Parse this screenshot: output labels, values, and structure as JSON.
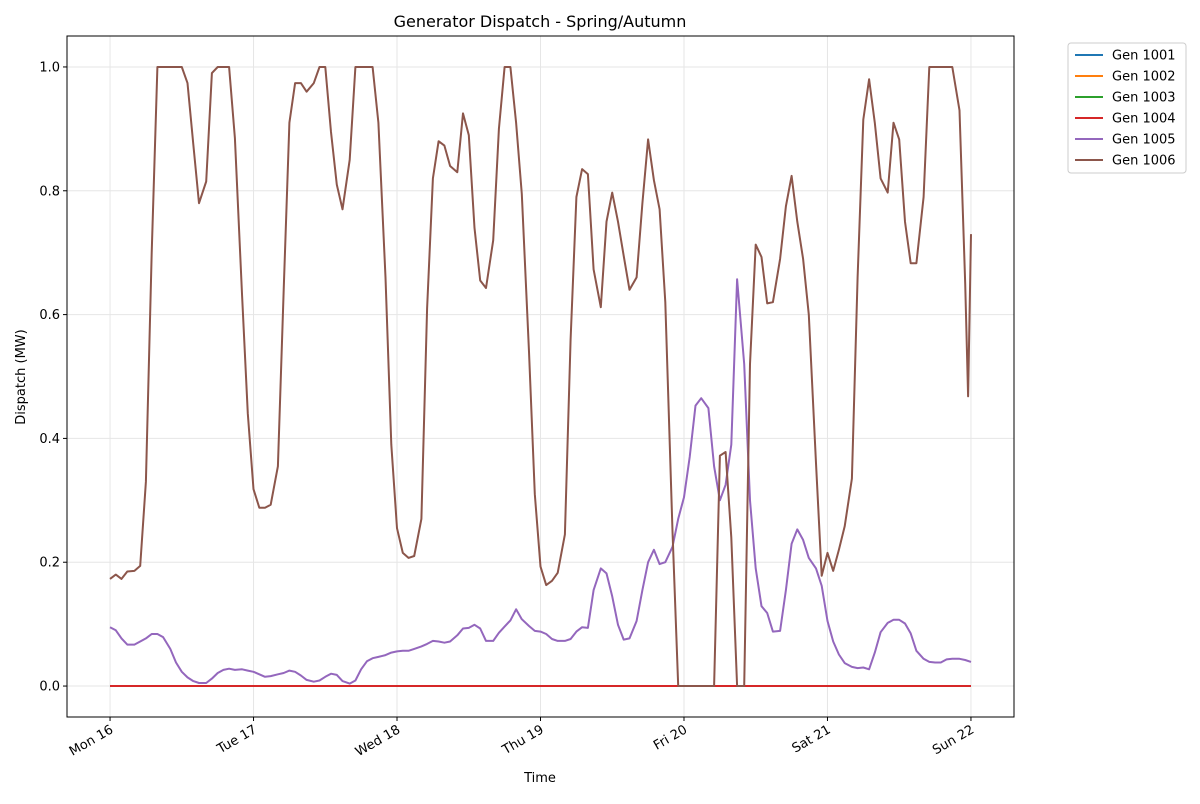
{
  "chart_data": {
    "type": "line",
    "title": "Generator Dispatch - Spring/Autumn",
    "xlabel": "Time",
    "ylabel": "Dispatch (MW)",
    "x_tick_labels": [
      "Mon 16",
      "Tue 17",
      "Wed 18",
      "Thu 19",
      "Fri 20",
      "Sat 21",
      "Sun 22"
    ],
    "y_tick_labels": [
      "0.0",
      "0.2",
      "0.4",
      "0.6",
      "0.8",
      "1.0"
    ],
    "y_ticks": [
      0.0,
      0.2,
      0.4,
      0.6,
      0.8,
      1.0
    ],
    "xlim_days": [
      -0.3,
      6.3
    ],
    "ylim": [
      -0.05,
      1.05
    ],
    "grid": true,
    "legend_position": "outside-right-top",
    "series": [
      {
        "name": "Gen 1001",
        "color": "#1f77b4",
        "points": [
          [
            0,
            0.0
          ],
          [
            6,
            0.0
          ]
        ]
      },
      {
        "name": "Gen 1002",
        "color": "#ff7f0e",
        "points": [
          [
            0,
            0.0
          ],
          [
            6,
            0.0
          ]
        ]
      },
      {
        "name": "Gen 1003",
        "color": "#2ca02c",
        "points": [
          [
            0,
            0.0
          ],
          [
            6,
            0.0
          ]
        ]
      },
      {
        "name": "Gen 1004",
        "color": "#d62728",
        "points": [
          [
            0,
            0.0
          ],
          [
            6,
            0.0
          ]
        ]
      },
      {
        "name": "Gen 1005",
        "color": "#9467bd",
        "points": [
          [
            0.0,
            0.095
          ],
          [
            0.04,
            0.09
          ],
          [
            0.08,
            0.077
          ],
          [
            0.12,
            0.067
          ],
          [
            0.17,
            0.067
          ],
          [
            0.21,
            0.072
          ],
          [
            0.25,
            0.077
          ],
          [
            0.29,
            0.084
          ],
          [
            0.33,
            0.084
          ],
          [
            0.37,
            0.079
          ],
          [
            0.42,
            0.06
          ],
          [
            0.46,
            0.038
          ],
          [
            0.5,
            0.023
          ],
          [
            0.54,
            0.014
          ],
          [
            0.58,
            0.008
          ],
          [
            0.62,
            0.005
          ],
          [
            0.67,
            0.005
          ],
          [
            0.71,
            0.012
          ],
          [
            0.75,
            0.021
          ],
          [
            0.79,
            0.026
          ],
          [
            0.83,
            0.028
          ],
          [
            0.87,
            0.026
          ],
          [
            0.92,
            0.027
          ],
          [
            0.96,
            0.025
          ],
          [
            1.0,
            0.023
          ],
          [
            1.04,
            0.019
          ],
          [
            1.08,
            0.015
          ],
          [
            1.12,
            0.016
          ],
          [
            1.17,
            0.019
          ],
          [
            1.21,
            0.021
          ],
          [
            1.25,
            0.025
          ],
          [
            1.29,
            0.023
          ],
          [
            1.33,
            0.017
          ],
          [
            1.37,
            0.01
          ],
          [
            1.42,
            0.007
          ],
          [
            1.46,
            0.009
          ],
          [
            1.5,
            0.015
          ],
          [
            1.54,
            0.02
          ],
          [
            1.58,
            0.018
          ],
          [
            1.62,
            0.008
          ],
          [
            1.67,
            0.004
          ],
          [
            1.71,
            0.009
          ],
          [
            1.75,
            0.027
          ],
          [
            1.79,
            0.04
          ],
          [
            1.83,
            0.045
          ],
          [
            1.87,
            0.047
          ],
          [
            1.92,
            0.05
          ],
          [
            1.96,
            0.054
          ],
          [
            2.0,
            0.056
          ],
          [
            2.04,
            0.057
          ],
          [
            2.08,
            0.057
          ],
          [
            2.12,
            0.06
          ],
          [
            2.17,
            0.064
          ],
          [
            2.21,
            0.068
          ],
          [
            2.25,
            0.073
          ],
          [
            2.29,
            0.072
          ],
          [
            2.33,
            0.07
          ],
          [
            2.37,
            0.072
          ],
          [
            2.42,
            0.082
          ],
          [
            2.46,
            0.093
          ],
          [
            2.5,
            0.094
          ],
          [
            2.54,
            0.099
          ],
          [
            2.58,
            0.093
          ],
          [
            2.62,
            0.073
          ],
          [
            2.67,
            0.073
          ],
          [
            2.71,
            0.086
          ],
          [
            2.75,
            0.096
          ],
          [
            2.79,
            0.106
          ],
          [
            2.83,
            0.124
          ],
          [
            2.87,
            0.108
          ],
          [
            2.92,
            0.097
          ],
          [
            2.96,
            0.089
          ],
          [
            3.0,
            0.088
          ],
          [
            3.04,
            0.084
          ],
          [
            3.08,
            0.076
          ],
          [
            3.12,
            0.073
          ],
          [
            3.17,
            0.073
          ],
          [
            3.21,
            0.076
          ],
          [
            3.25,
            0.088
          ],
          [
            3.29,
            0.095
          ],
          [
            3.33,
            0.094
          ],
          [
            3.37,
            0.155
          ],
          [
            3.42,
            0.19
          ],
          [
            3.46,
            0.182
          ],
          [
            3.5,
            0.145
          ],
          [
            3.54,
            0.099
          ],
          [
            3.58,
            0.075
          ],
          [
            3.62,
            0.077
          ],
          [
            3.67,
            0.105
          ],
          [
            3.71,
            0.155
          ],
          [
            3.75,
            0.2
          ],
          [
            3.79,
            0.22
          ],
          [
            3.83,
            0.197
          ],
          [
            3.87,
            0.2
          ],
          [
            3.92,
            0.225
          ],
          [
            3.96,
            0.27
          ],
          [
            4.0,
            0.305
          ],
          [
            4.04,
            0.37
          ],
          [
            4.08,
            0.453
          ],
          [
            4.12,
            0.465
          ],
          [
            4.17,
            0.449
          ],
          [
            4.21,
            0.355
          ],
          [
            4.25,
            0.3
          ],
          [
            4.29,
            0.325
          ],
          [
            4.33,
            0.39
          ],
          [
            4.37,
            0.657
          ],
          [
            4.42,
            0.52
          ],
          [
            4.46,
            0.3
          ],
          [
            4.5,
            0.19
          ],
          [
            4.54,
            0.129
          ],
          [
            4.58,
            0.118
          ],
          [
            4.62,
            0.088
          ],
          [
            4.67,
            0.089
          ],
          [
            4.71,
            0.155
          ],
          [
            4.75,
            0.23
          ],
          [
            4.79,
            0.253
          ],
          [
            4.83,
            0.236
          ],
          [
            4.87,
            0.207
          ],
          [
            4.92,
            0.19
          ],
          [
            4.96,
            0.162
          ],
          [
            5.0,
            0.105
          ],
          [
            5.04,
            0.072
          ],
          [
            5.08,
            0.051
          ],
          [
            5.12,
            0.037
          ],
          [
            5.17,
            0.031
          ],
          [
            5.21,
            0.029
          ],
          [
            5.25,
            0.03
          ],
          [
            5.29,
            0.027
          ],
          [
            5.33,
            0.054
          ],
          [
            5.37,
            0.087
          ],
          [
            5.42,
            0.102
          ],
          [
            5.46,
            0.107
          ],
          [
            5.5,
            0.107
          ],
          [
            5.54,
            0.101
          ],
          [
            5.58,
            0.085
          ],
          [
            5.62,
            0.057
          ],
          [
            5.67,
            0.044
          ],
          [
            5.71,
            0.039
          ],
          [
            5.75,
            0.038
          ],
          [
            5.79,
            0.038
          ],
          [
            5.83,
            0.043
          ],
          [
            5.87,
            0.044
          ],
          [
            5.92,
            0.044
          ],
          [
            5.96,
            0.042
          ],
          [
            6.0,
            0.039
          ]
        ]
      },
      {
        "name": "Gen 1006",
        "color": "#8c564b",
        "points": [
          [
            0.0,
            0.173
          ],
          [
            0.04,
            0.18
          ],
          [
            0.08,
            0.173
          ],
          [
            0.12,
            0.185
          ],
          [
            0.17,
            0.186
          ],
          [
            0.21,
            0.194
          ],
          [
            0.25,
            0.33
          ],
          [
            0.29,
            0.7
          ],
          [
            0.33,
            1.0
          ],
          [
            0.37,
            1.0
          ],
          [
            0.42,
            1.0
          ],
          [
            0.46,
            1.0
          ],
          [
            0.5,
            1.0
          ],
          [
            0.54,
            0.974
          ],
          [
            0.58,
            0.875
          ],
          [
            0.62,
            0.78
          ],
          [
            0.67,
            0.815
          ],
          [
            0.71,
            0.99
          ],
          [
            0.75,
            1.0
          ],
          [
            0.79,
            1.0
          ],
          [
            0.83,
            1.0
          ],
          [
            0.87,
            0.885
          ],
          [
            0.92,
            0.63
          ],
          [
            0.96,
            0.44
          ],
          [
            1.0,
            0.318
          ],
          [
            1.04,
            0.288
          ],
          [
            1.08,
            0.288
          ],
          [
            1.12,
            0.293
          ],
          [
            1.17,
            0.355
          ],
          [
            1.21,
            0.64
          ],
          [
            1.25,
            0.91
          ],
          [
            1.29,
            0.974
          ],
          [
            1.33,
            0.974
          ],
          [
            1.37,
            0.96
          ],
          [
            1.42,
            0.974
          ],
          [
            1.46,
            1.0
          ],
          [
            1.5,
            1.0
          ],
          [
            1.54,
            0.895
          ],
          [
            1.58,
            0.81
          ],
          [
            1.62,
            0.77
          ],
          [
            1.67,
            0.85
          ],
          [
            1.71,
            1.0
          ],
          [
            1.75,
            1.0
          ],
          [
            1.79,
            1.0
          ],
          [
            1.83,
            1.0
          ],
          [
            1.87,
            0.91
          ],
          [
            1.92,
            0.66
          ],
          [
            1.96,
            0.39
          ],
          [
            2.0,
            0.255
          ],
          [
            2.04,
            0.215
          ],
          [
            2.08,
            0.207
          ],
          [
            2.12,
            0.21
          ],
          [
            2.17,
            0.27
          ],
          [
            2.21,
            0.61
          ],
          [
            2.25,
            0.82
          ],
          [
            2.29,
            0.88
          ],
          [
            2.33,
            0.873
          ],
          [
            2.37,
            0.84
          ],
          [
            2.42,
            0.83
          ],
          [
            2.46,
            0.925
          ],
          [
            2.5,
            0.89
          ],
          [
            2.54,
            0.74
          ],
          [
            2.58,
            0.655
          ],
          [
            2.62,
            0.643
          ],
          [
            2.67,
            0.72
          ],
          [
            2.71,
            0.9
          ],
          [
            2.75,
            1.0
          ],
          [
            2.79,
            1.0
          ],
          [
            2.83,
            0.91
          ],
          [
            2.87,
            0.795
          ],
          [
            2.92,
            0.54
          ],
          [
            2.96,
            0.31
          ],
          [
            3.0,
            0.193
          ],
          [
            3.04,
            0.163
          ],
          [
            3.08,
            0.17
          ],
          [
            3.12,
            0.183
          ],
          [
            3.17,
            0.245
          ],
          [
            3.21,
            0.56
          ],
          [
            3.25,
            0.79
          ],
          [
            3.29,
            0.835
          ],
          [
            3.33,
            0.827
          ],
          [
            3.37,
            0.673
          ],
          [
            3.42,
            0.612
          ],
          [
            3.46,
            0.75
          ],
          [
            3.5,
            0.797
          ],
          [
            3.54,
            0.75
          ],
          [
            3.58,
            0.695
          ],
          [
            3.62,
            0.64
          ],
          [
            3.67,
            0.66
          ],
          [
            3.71,
            0.78
          ],
          [
            3.75,
            0.883
          ],
          [
            3.79,
            0.817
          ],
          [
            3.83,
            0.77
          ],
          [
            3.87,
            0.62
          ],
          [
            3.92,
            0.25
          ],
          [
            3.96,
            0.0
          ],
          [
            4.0,
            0.0
          ],
          [
            4.04,
            0.0
          ],
          [
            4.08,
            0.0
          ],
          [
            4.12,
            0.0
          ],
          [
            4.17,
            0.0
          ],
          [
            4.21,
            0.0
          ],
          [
            4.25,
            0.372
          ],
          [
            4.29,
            0.378
          ],
          [
            4.33,
            0.24
          ],
          [
            4.37,
            0.0
          ],
          [
            4.42,
            0.0
          ],
          [
            4.46,
            0.52
          ],
          [
            4.5,
            0.713
          ],
          [
            4.54,
            0.693
          ],
          [
            4.58,
            0.618
          ],
          [
            4.62,
            0.62
          ],
          [
            4.67,
            0.69
          ],
          [
            4.71,
            0.775
          ],
          [
            4.75,
            0.824
          ],
          [
            4.79,
            0.75
          ],
          [
            4.83,
            0.69
          ],
          [
            4.87,
            0.6
          ],
          [
            4.92,
            0.36
          ],
          [
            4.96,
            0.178
          ],
          [
            5.0,
            0.215
          ],
          [
            5.04,
            0.186
          ],
          [
            5.08,
            0.22
          ],
          [
            5.12,
            0.258
          ],
          [
            5.17,
            0.335
          ],
          [
            5.21,
            0.66
          ],
          [
            5.25,
            0.915
          ],
          [
            5.29,
            0.98
          ],
          [
            5.33,
            0.91
          ],
          [
            5.37,
            0.82
          ],
          [
            5.42,
            0.797
          ],
          [
            5.46,
            0.91
          ],
          [
            5.5,
            0.883
          ],
          [
            5.54,
            0.75
          ],
          [
            5.58,
            0.683
          ],
          [
            5.62,
            0.683
          ],
          [
            5.67,
            0.79
          ],
          [
            5.71,
            1.0
          ],
          [
            5.75,
            1.0
          ],
          [
            5.79,
            1.0
          ],
          [
            5.83,
            1.0
          ],
          [
            5.87,
            1.0
          ],
          [
            5.92,
            0.93
          ],
          [
            5.96,
            0.65
          ],
          [
            5.98,
            0.468
          ],
          [
            6.0,
            0.73
          ]
        ]
      }
    ]
  }
}
